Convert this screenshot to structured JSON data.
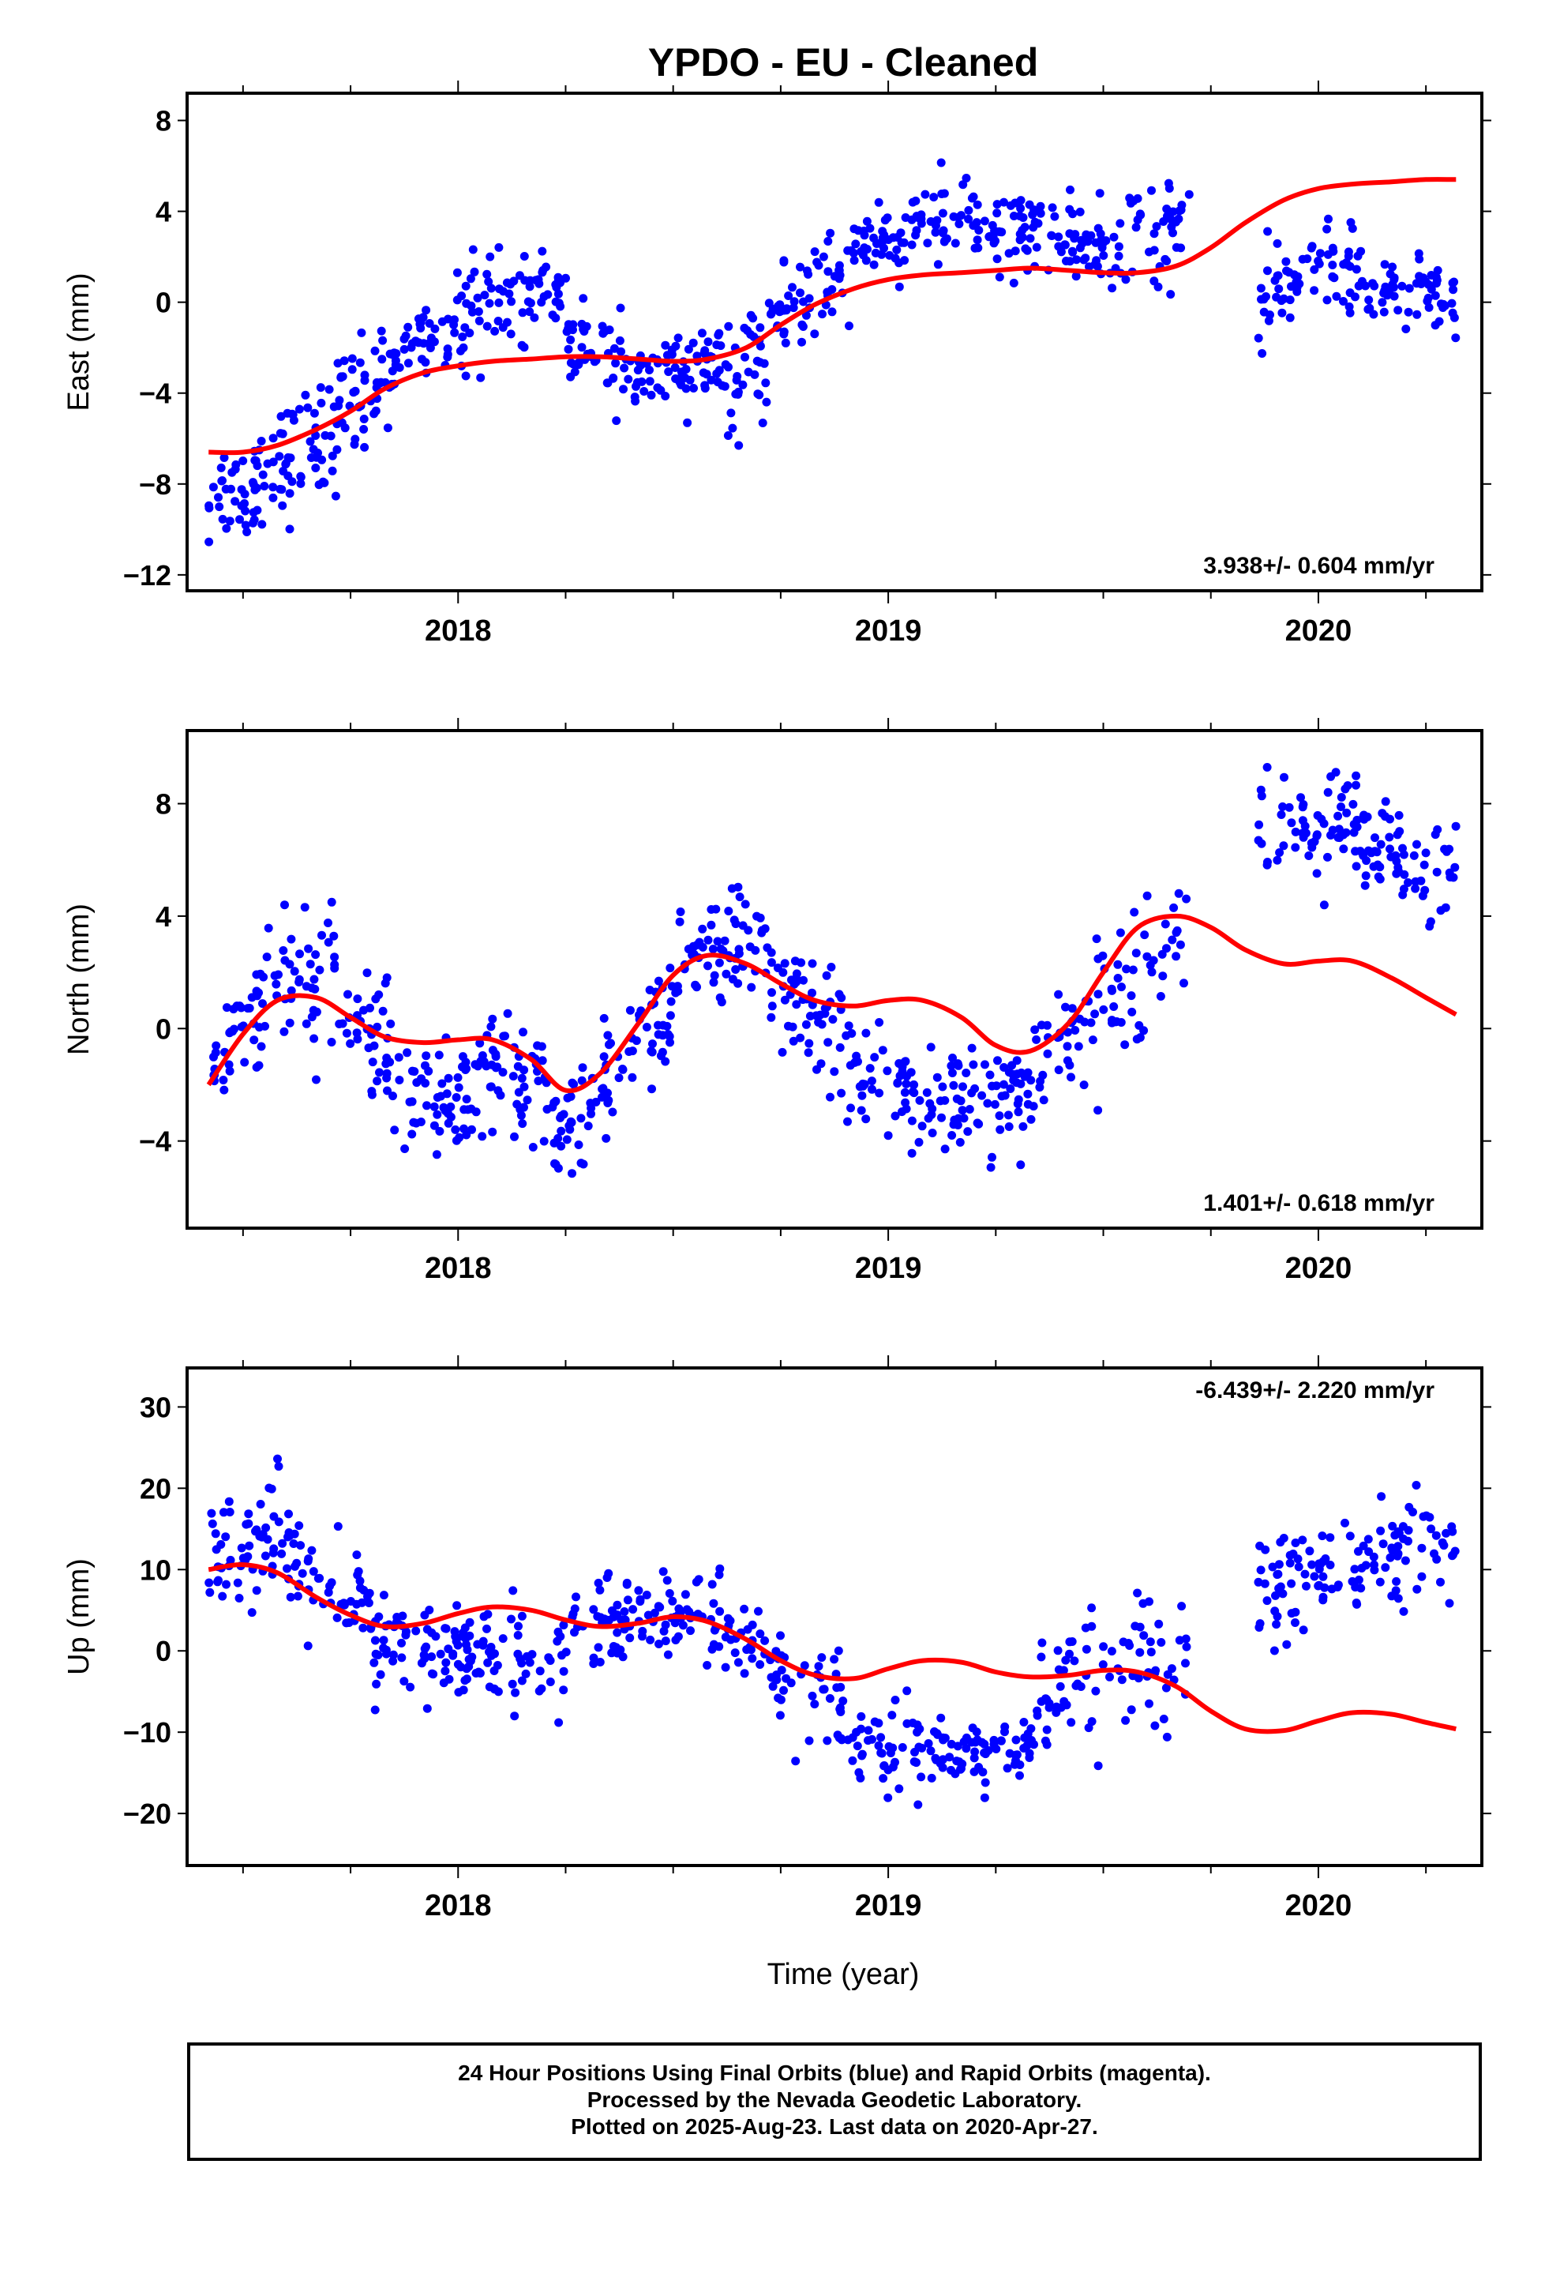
{
  "title": "YPDO  - EU - Cleaned",
  "xlabel": "Time (year)",
  "footer": {
    "line1": "24 Hour Positions Using Final Orbits (blue) and Rapid Orbits (magenta).",
    "line2": "Processed by the Nevada Geodetic Laboratory.",
    "line3": "Plotted on 2025-Aug-23. Last data on 2020-Apr-27."
  },
  "colors": {
    "data": "#0000ff",
    "fit": "#ff0000",
    "frame": "#000000"
  },
  "chart_data": [
    {
      "type": "scatter",
      "ylabel": "East (mm)",
      "rate": "3.938+/- 0.604 mm/yr",
      "xlim": [
        2017.37,
        2020.38
      ],
      "ylim": [
        -12.7,
        9.2
      ],
      "yticks": [
        -12,
        -8,
        -4,
        0,
        4,
        8
      ],
      "ytick_labels": [
        "−12",
        "−8",
        "−4",
        "0",
        "4",
        "8"
      ],
      "xticks": [
        2018,
        2019,
        2020
      ],
      "xtick_labels": [
        "2018",
        "2019",
        "2020"
      ],
      "fit": {
        "x": [
          2017.42,
          2017.5,
          2017.58,
          2017.67,
          2017.75,
          2017.83,
          2017.92,
          2018.0,
          2018.08,
          2018.17,
          2018.25,
          2018.33,
          2018.42,
          2018.5,
          2018.58,
          2018.67,
          2018.75,
          2018.83,
          2018.92,
          2019.0,
          2019.08,
          2019.17,
          2019.25,
          2019.33,
          2019.42,
          2019.5,
          2019.58,
          2019.67,
          2019.75,
          2019.83,
          2019.92,
          2020.0,
          2020.08,
          2020.17,
          2020.25,
          2020.32
        ],
        "y": [
          -6.6,
          -6.6,
          -6.3,
          -5.6,
          -4.8,
          -3.8,
          -3.1,
          -2.8,
          -2.6,
          -2.5,
          -2.4,
          -2.4,
          -2.5,
          -2.6,
          -2.5,
          -2.0,
          -1.0,
          -0.1,
          0.6,
          1.0,
          1.2,
          1.3,
          1.4,
          1.5,
          1.4,
          1.3,
          1.3,
          1.6,
          2.4,
          3.5,
          4.5,
          5.0,
          5.2,
          5.3,
          5.4,
          5.4
        ]
      },
      "series": [
        {
          "x0": 2017.42,
          "x1": 2017.55,
          "y0": -8.6,
          "y1": -7.6,
          "spread": 1.6,
          "n": 45
        },
        {
          "x0": 2017.55,
          "x1": 2017.72,
          "y0": -7.6,
          "y1": -5.6,
          "spread": 1.7,
          "n": 55
        },
        {
          "x0": 2017.72,
          "x1": 2017.85,
          "y0": -5.4,
          "y1": -2.4,
          "spread": 1.7,
          "n": 45
        },
        {
          "x0": 2017.85,
          "x1": 2018.05,
          "y0": -2.0,
          "y1": -0.6,
          "spread": 1.4,
          "n": 60
        },
        {
          "x0": 2018.05,
          "x1": 2018.25,
          "y0": -0.2,
          "y1": 0.8,
          "spread": 1.2,
          "n": 55
        },
        {
          "x0": 2018.25,
          "x1": 2018.4,
          "y0": -1.6,
          "y1": -3.2,
          "spread": 1.3,
          "n": 45
        },
        {
          "x0": 2018.4,
          "x1": 2018.62,
          "y0": -3.4,
          "y1": -2.6,
          "spread": 1.1,
          "n": 70
        },
        {
          "x0": 2018.62,
          "x1": 2018.72,
          "y0": -3.8,
          "y1": -2.6,
          "spread": 1.6,
          "n": 35
        },
        {
          "x0": 2018.72,
          "x1": 2018.92,
          "y0": -1.0,
          "y1": 1.6,
          "spread": 1.3,
          "n": 60
        },
        {
          "x0": 2018.92,
          "x1": 2019.1,
          "y0": 2.2,
          "y1": 3.6,
          "spread": 1.1,
          "n": 55
        },
        {
          "x0": 2019.1,
          "x1": 2019.32,
          "y0": 3.4,
          "y1": 3.2,
          "spread": 1.2,
          "n": 65
        },
        {
          "x0": 2019.32,
          "x1": 2019.52,
          "y0": 2.8,
          "y1": 2.6,
          "spread": 1.2,
          "n": 60
        },
        {
          "x0": 2019.52,
          "x1": 2019.7,
          "y0": 2.8,
          "y1": 3.4,
          "spread": 1.6,
          "n": 45
        },
        {
          "x0": 2019.86,
          "x1": 2019.98,
          "y0": -0.6,
          "y1": 1.6,
          "spread": 1.4,
          "n": 35
        },
        {
          "x0": 2019.98,
          "x1": 2020.1,
          "y0": 2.2,
          "y1": 1.2,
          "spread": 1.2,
          "n": 35
        },
        {
          "x0": 2020.1,
          "x1": 2020.32,
          "y0": 0.6,
          "y1": 0.0,
          "spread": 1.0,
          "n": 60
        }
      ]
    },
    {
      "type": "scatter",
      "ylabel": "North (mm)",
      "rate": "1.401+/- 0.618 mm/yr",
      "xlim": [
        2017.37,
        2020.38
      ],
      "ylim": [
        -7.1,
        10.6
      ],
      "yticks": [
        -4,
        0,
        4,
        8
      ],
      "ytick_labels": [
        "−4",
        "0",
        "4",
        "8"
      ],
      "xticks": [
        2018,
        2019,
        2020
      ],
      "xtick_labels": [
        "2018",
        "2019",
        "2020"
      ],
      "fit": {
        "x": [
          2017.42,
          2017.5,
          2017.58,
          2017.67,
          2017.75,
          2017.83,
          2017.92,
          2018.0,
          2018.08,
          2018.17,
          2018.25,
          2018.33,
          2018.42,
          2018.5,
          2018.58,
          2018.67,
          2018.75,
          2018.83,
          2018.92,
          2019.0,
          2019.08,
          2019.17,
          2019.25,
          2019.33,
          2019.42,
          2019.5,
          2019.58,
          2019.67,
          2019.75,
          2019.83,
          2019.92,
          2020.0,
          2020.08,
          2020.17,
          2020.25,
          2020.32
        ],
        "y": [
          -2.0,
          -0.2,
          1.0,
          1.1,
          0.4,
          -0.3,
          -0.5,
          -0.4,
          -0.4,
          -1.1,
          -2.2,
          -1.6,
          0.2,
          1.9,
          2.6,
          2.3,
          1.6,
          1.0,
          0.8,
          1.0,
          1.0,
          0.4,
          -0.6,
          -0.8,
          0.2,
          2.0,
          3.6,
          4.0,
          3.6,
          2.8,
          2.3,
          2.4,
          2.4,
          1.8,
          1.1,
          0.5
        ]
      },
      "series": [
        {
          "x0": 2017.42,
          "x1": 2017.55,
          "y0": -1.2,
          "y1": 1.0,
          "spread": 1.6,
          "n": 40
        },
        {
          "x0": 2017.55,
          "x1": 2017.72,
          "y0": 1.4,
          "y1": 2.6,
          "spread": 1.9,
          "n": 45
        },
        {
          "x0": 2017.72,
          "x1": 2017.9,
          "y0": 0.4,
          "y1": -1.6,
          "spread": 1.5,
          "n": 50
        },
        {
          "x0": 2017.9,
          "x1": 2018.05,
          "y0": -2.2,
          "y1": -2.6,
          "spread": 1.5,
          "n": 50
        },
        {
          "x0": 2018.05,
          "x1": 2018.22,
          "y0": -1.6,
          "y1": -3.0,
          "spread": 1.6,
          "n": 55
        },
        {
          "x0": 2018.22,
          "x1": 2018.32,
          "y0": -3.6,
          "y1": -3.0,
          "spread": 1.5,
          "n": 35
        },
        {
          "x0": 2018.32,
          "x1": 2018.5,
          "y0": -2.2,
          "y1": 0.8,
          "spread": 1.4,
          "n": 55
        },
        {
          "x0": 2018.5,
          "x1": 2018.72,
          "y0": 2.4,
          "y1": 3.0,
          "spread": 1.3,
          "n": 65
        },
        {
          "x0": 2018.72,
          "x1": 2018.9,
          "y0": 1.4,
          "y1": -0.2,
          "spread": 1.3,
          "n": 55
        },
        {
          "x0": 2018.9,
          "x1": 2019.1,
          "y0": -1.2,
          "y1": -2.6,
          "spread": 1.2,
          "n": 55
        },
        {
          "x0": 2019.1,
          "x1": 2019.3,
          "y0": -3.0,
          "y1": -2.4,
          "spread": 1.2,
          "n": 60
        },
        {
          "x0": 2019.3,
          "x1": 2019.48,
          "y0": -2.2,
          "y1": 0.4,
          "spread": 1.3,
          "n": 50
        },
        {
          "x0": 2019.48,
          "x1": 2019.7,
          "y0": 1.0,
          "y1": 3.6,
          "spread": 1.6,
          "n": 50
        },
        {
          "x0": 2019.86,
          "x1": 2020.1,
          "y0": 7.0,
          "y1": 7.4,
          "spread": 1.3,
          "n": 65
        },
        {
          "x0": 2020.1,
          "x1": 2020.32,
          "y0": 6.6,
          "y1": 5.4,
          "spread": 1.2,
          "n": 65
        }
      ]
    },
    {
      "type": "scatter",
      "ylabel": "Up (mm)",
      "rate": "-6.439+/- 2.220 mm/yr",
      "xlim": [
        2017.37,
        2020.38
      ],
      "ylim": [
        -26.4,
        34.8
      ],
      "yticks": [
        -20,
        -10,
        0,
        10,
        20,
        30
      ],
      "ytick_labels": [
        "−20",
        "−10",
        "0",
        "10",
        "20",
        "30"
      ],
      "xticks": [
        2018,
        2019,
        2020
      ],
      "xtick_labels": [
        "2018",
        "2019",
        "2020"
      ],
      "fit": {
        "x": [
          2017.42,
          2017.5,
          2017.58,
          2017.67,
          2017.75,
          2017.83,
          2017.92,
          2018.0,
          2018.08,
          2018.17,
          2018.25,
          2018.33,
          2018.42,
          2018.5,
          2018.58,
          2018.67,
          2018.75,
          2018.83,
          2018.92,
          2019.0,
          2019.08,
          2019.17,
          2019.25,
          2019.33,
          2019.42,
          2019.5,
          2019.58,
          2019.67,
          2019.75,
          2019.83,
          2019.92,
          2020.0,
          2020.08,
          2020.17,
          2020.25,
          2020.32
        ],
        "y": [
          10.0,
          10.6,
          9.6,
          6.6,
          4.4,
          3.0,
          3.4,
          4.6,
          5.4,
          5.0,
          3.8,
          3.0,
          3.4,
          4.2,
          3.6,
          1.4,
          -1.2,
          -3.0,
          -3.4,
          -2.2,
          -1.2,
          -1.4,
          -2.6,
          -3.2,
          -3.0,
          -2.4,
          -2.6,
          -4.4,
          -7.4,
          -9.6,
          -9.8,
          -8.6,
          -7.6,
          -7.8,
          -8.8,
          -9.6
        ]
      },
      "series": [
        {
          "x0": 2017.42,
          "x1": 2017.6,
          "y0": 13.0,
          "y1": 14.0,
          "spread": 5.0,
          "n": 55
        },
        {
          "x0": 2017.6,
          "x1": 2017.8,
          "y0": 11.0,
          "y1": 3.0,
          "spread": 4.5,
          "n": 55
        },
        {
          "x0": 2017.8,
          "x1": 2018.0,
          "y0": 1.0,
          "y1": -1.0,
          "spread": 4.5,
          "n": 60
        },
        {
          "x0": 2018.0,
          "x1": 2018.25,
          "y0": -1.0,
          "y1": -1.0,
          "spread": 4.5,
          "n": 70
        },
        {
          "x0": 2018.25,
          "x1": 2018.5,
          "y0": 2.0,
          "y1": 5.0,
          "spread": 4.0,
          "n": 70
        },
        {
          "x0": 2018.5,
          "x1": 2018.7,
          "y0": 5.0,
          "y1": 1.0,
          "spread": 4.0,
          "n": 55
        },
        {
          "x0": 2018.7,
          "x1": 2018.9,
          "y0": -2.0,
          "y1": -8.0,
          "spread": 4.0,
          "n": 50
        },
        {
          "x0": 2018.9,
          "x1": 2019.15,
          "y0": -12.0,
          "y1": -14.0,
          "spread": 3.5,
          "n": 65
        },
        {
          "x0": 2019.15,
          "x1": 2019.35,
          "y0": -14.0,
          "y1": -10.0,
          "spread": 3.5,
          "n": 55
        },
        {
          "x0": 2019.35,
          "x1": 2019.55,
          "y0": -5.0,
          "y1": -2.0,
          "spread": 4.5,
          "n": 45
        },
        {
          "x0": 2019.55,
          "x1": 2019.7,
          "y0": -2.0,
          "y1": 0.0,
          "spread": 5.5,
          "n": 35
        },
        {
          "x0": 2019.86,
          "x1": 2020.08,
          "y0": 10.0,
          "y1": 9.0,
          "spread": 5.0,
          "n": 60
        },
        {
          "x0": 2020.08,
          "x1": 2020.32,
          "y0": 11.0,
          "y1": 14.0,
          "spread": 4.0,
          "n": 65
        }
      ]
    }
  ]
}
